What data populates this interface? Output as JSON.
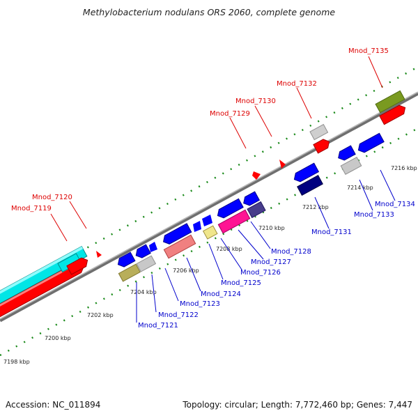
{
  "title": "Methylobacterium nodulans ORS 2060, complete genome",
  "footer": {
    "accession": "Accession: NC_011894",
    "summary": "Topology: circular; Length: 7,772,460 bp; Genes: 7,447"
  },
  "colors": {
    "forward_label": "#dd0000",
    "reverse_label": "#0000cc",
    "backbone": "#8a8a8a",
    "tick": "#1a8a1a"
  },
  "ticks": [
    "7198 kbp",
    "7200 kbp",
    "7202 kbp",
    "7204 kbp",
    "7206 kbp",
    "7208 kbp",
    "7210 kbp",
    "7212 kbp",
    "7214 kbp",
    "7216 kbp"
  ],
  "forward_labels": [
    "Mnod_7119",
    "Mnod_7120",
    "Mnod_7129",
    "Mnod_7130",
    "Mnod_7132",
    "Mnod_7135"
  ],
  "reverse_labels": [
    "Mnod_7121",
    "Mnod_7122",
    "Mnod_7123",
    "Mnod_7124",
    "Mnod_7125",
    "Mnod_7126",
    "Mnod_7127",
    "Mnod_7128",
    "Mnod_7131",
    "Mnod_7133",
    "Mnod_7134"
  ]
}
